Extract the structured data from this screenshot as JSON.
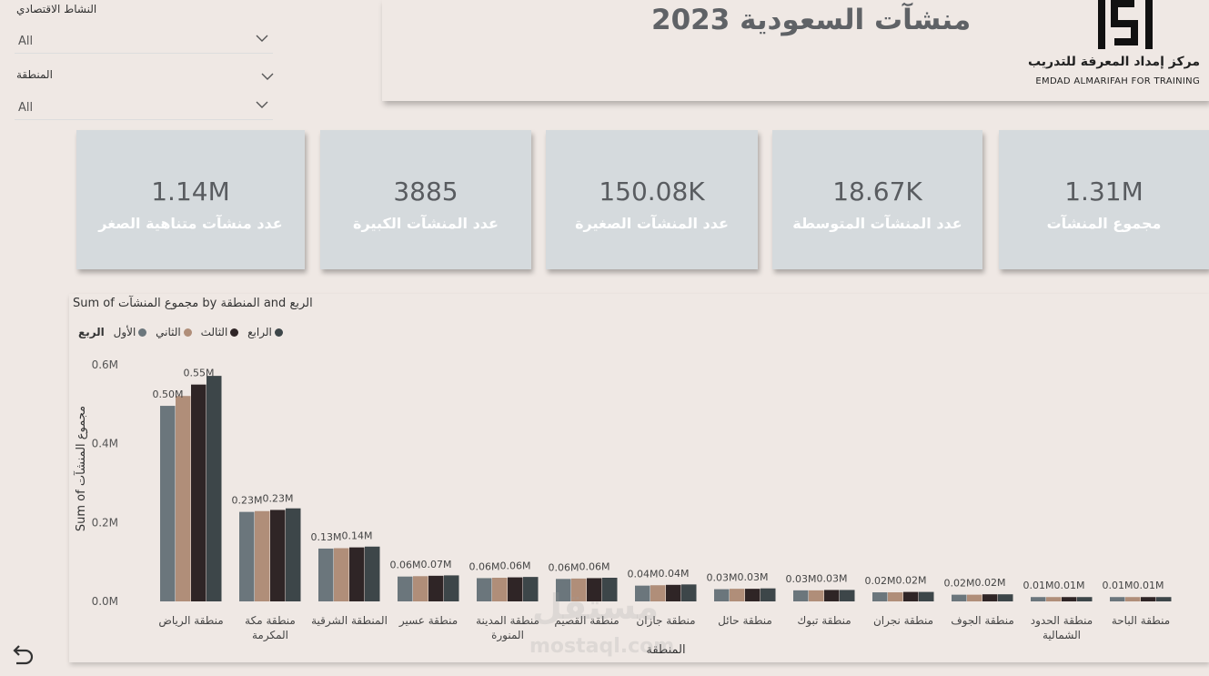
{
  "filters": {
    "activity": {
      "label": "النشاط الاقتصادي",
      "value": "All"
    },
    "region": {
      "label": "المنطقة",
      "value": "All"
    }
  },
  "header": {
    "title": "منشآت السعودية 2023",
    "logo_ar": "مركز إمداد المعرفة للتدريب",
    "logo_en": "EMDAD ALMARIFAH FOR TRAINING"
  },
  "cards": [
    {
      "value": "1.14M",
      "label": "عدد منشآت متناهية الصغر"
    },
    {
      "value": "3885",
      "label": "عدد المنشآت الكبيرة"
    },
    {
      "value": "150.08K",
      "label": "عدد المنشآت الصغيرة"
    },
    {
      "value": "18.67K",
      "label": "عدد المنشآت المتوسطة"
    },
    {
      "value": "1.31M",
      "label": "مجموع المنشآت"
    }
  ],
  "watermark": {
    "text": "مستقل",
    "url": "mostaql.com"
  },
  "chart_data": {
    "type": "bar",
    "title": "Sum of مجموع المنشآت by المنطقة and الربع",
    "xlabel": "المنطقة",
    "ylabel": "Sum of مجموع المنشآت",
    "legend_title": "الربع",
    "ylim": [
      0,
      0.6
    ],
    "yticks": [
      "0.0M",
      "0.2M",
      "0.4M",
      "0.6M"
    ],
    "categories": [
      "منطقة الرياض",
      "منطقة مكة المكرمة",
      "المنطقة الشرقية",
      "منطقة عسير",
      "منطقة المدينة المنورة",
      "منطقة القصيم",
      "منطقة جازان",
      "منطقة حائل",
      "منطقة تبوك",
      "منطقة نجران",
      "منطقة الجوف",
      "منطقة الحدود الشمالية",
      "منطقة الباحة"
    ],
    "series": [
      {
        "name": "الأول",
        "color": "#6b767c",
        "values": [
          0.496,
          0.227,
          0.134,
          0.063,
          0.059,
          0.057,
          0.04,
          0.031,
          0.028,
          0.023,
          0.017,
          0.011,
          0.011
        ]
      },
      {
        "name": "الثاني",
        "color": "#b08e79",
        "values": [
          0.521,
          0.229,
          0.135,
          0.064,
          0.06,
          0.058,
          0.041,
          0.032,
          0.028,
          0.023,
          0.017,
          0.011,
          0.011
        ]
      },
      {
        "name": "الثالث",
        "color": "#2f2526",
        "values": [
          0.55,
          0.232,
          0.137,
          0.065,
          0.061,
          0.059,
          0.042,
          0.032,
          0.029,
          0.024,
          0.018,
          0.011,
          0.011
        ]
      },
      {
        "name": "الرابع",
        "color": "#3d4649",
        "values": [
          0.572,
          0.236,
          0.139,
          0.066,
          0.062,
          0.06,
          0.043,
          0.033,
          0.029,
          0.024,
          0.018,
          0.011,
          0.011
        ]
      }
    ],
    "data_labels": [
      [
        "0.50M",
        "0.55M"
      ],
      [
        "0.23M",
        "0.23M"
      ],
      [
        "0.13M",
        "0.14M"
      ],
      [
        "0.06M",
        "0.07M"
      ],
      [
        "0.06M",
        "0.06M"
      ],
      [
        "0.06M",
        "0.06M"
      ],
      [
        "0.04M",
        "0.04M"
      ],
      [
        "0.03M",
        "0.03M"
      ],
      [
        "0.03M",
        "0.03M"
      ],
      [
        "0.02M",
        "0.02M"
      ],
      [
        "0.02M",
        "0.02M"
      ],
      [
        "0.01M",
        "0.01M"
      ],
      [
        "0.01M",
        "0.01M"
      ]
    ],
    "grid": false,
    "legend_position": "top-left"
  }
}
